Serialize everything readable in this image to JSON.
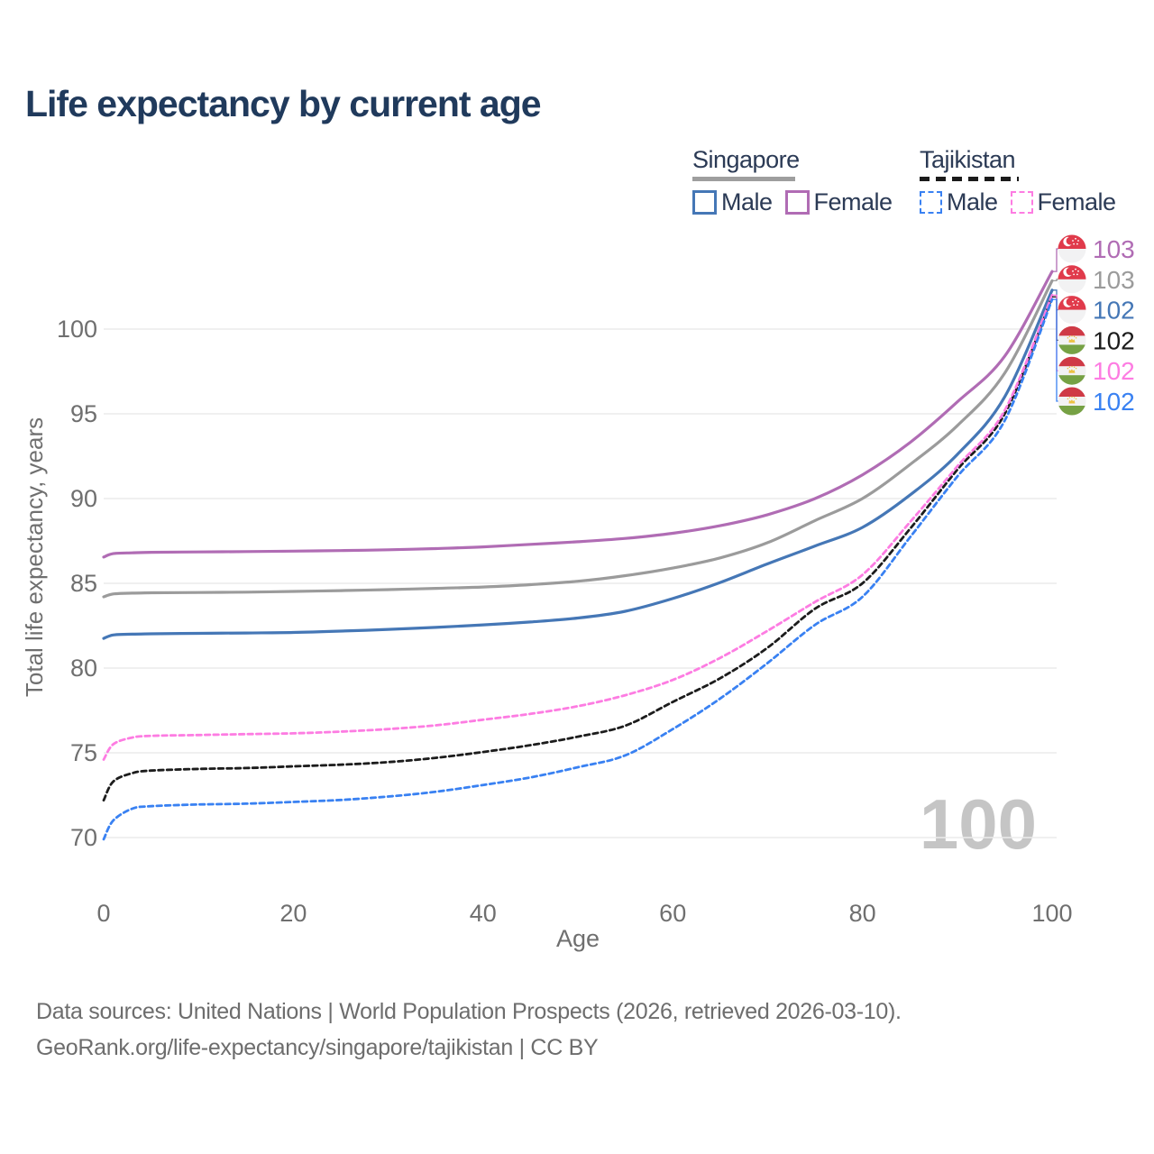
{
  "title": "Life expectancy by current age",
  "watermark": "100",
  "legend": {
    "position": "top-right",
    "groups": [
      {
        "name": "Singapore",
        "line_style": "solid",
        "underline_color": "#9e9e9e",
        "items": [
          {
            "label": "Male",
            "color": "#4577b6",
            "dashed": false
          },
          {
            "label": "Female",
            "color": "#b06cb4",
            "dashed": false
          }
        ]
      },
      {
        "name": "Tajikistan",
        "line_style": "dashed",
        "underline_color": "#1b1b1b",
        "items": [
          {
            "label": "Male",
            "color": "#3981f2",
            "dashed": true
          },
          {
            "label": "Female",
            "color": "#fd7ce2",
            "dashed": true
          }
        ]
      }
    ]
  },
  "footer": {
    "line1": "Data sources: United Nations | World Population Prospects (2026, retrieved 2026-03-10).",
    "line2": "GeoRank.org/life-expectancy/singapore/tajikistan | CC BY"
  },
  "chart_data": {
    "type": "line",
    "title": "Life expectancy by current age",
    "xlabel": "Age",
    "ylabel": "Total life expectancy, years",
    "xlim": [
      0,
      100
    ],
    "ylim": [
      67.5,
      104
    ],
    "x_ticks": [
      0,
      20,
      40,
      60,
      80,
      100
    ],
    "y_ticks": [
      70,
      75,
      80,
      85,
      90,
      95,
      100
    ],
    "grid": true,
    "x": [
      0,
      1,
      3,
      5,
      10,
      15,
      20,
      25,
      30,
      35,
      40,
      45,
      50,
      55,
      60,
      65,
      70,
      75,
      80,
      85,
      90,
      95,
      100
    ],
    "series": [
      {
        "name": "Singapore Female",
        "color": "#b06cb4",
        "dashed": false,
        "flag": "singapore",
        "end_label": "103",
        "values": [
          86.55,
          86.75,
          86.8,
          86.83,
          86.85,
          86.87,
          86.9,
          86.93,
          86.98,
          87.05,
          87.15,
          87.3,
          87.45,
          87.65,
          87.95,
          88.4,
          89.05,
          90.0,
          91.4,
          93.3,
          95.7,
          98.4,
          103.4
        ]
      },
      {
        "name": "Singapore Both sexes",
        "color": "#9b9b9b",
        "dashed": false,
        "flag": "singapore",
        "end_label": "103",
        "values": [
          84.2,
          84.37,
          84.42,
          84.44,
          84.46,
          84.48,
          84.52,
          84.57,
          84.63,
          84.7,
          84.78,
          84.92,
          85.12,
          85.45,
          85.9,
          86.5,
          87.4,
          88.7,
          90.0,
          92.0,
          94.3,
          97.4,
          102.85
        ]
      },
      {
        "name": "Singapore Male",
        "color": "#4577b6",
        "dashed": false,
        "flag": "singapore",
        "end_label": "102",
        "values": [
          81.75,
          81.95,
          82.0,
          82.02,
          82.05,
          82.07,
          82.1,
          82.18,
          82.28,
          82.4,
          82.55,
          82.72,
          82.95,
          83.35,
          84.1,
          85.05,
          86.15,
          87.2,
          88.3,
          90.2,
          92.6,
          96.0,
          102.3
        ]
      },
      {
        "name": "Tajikistan Both sexes",
        "color": "#1c1c1c",
        "dashed": true,
        "flag": "tajikistan",
        "end_label": "102",
        "values": [
          72.2,
          73.3,
          73.8,
          73.95,
          74.05,
          74.1,
          74.2,
          74.3,
          74.45,
          74.7,
          75.05,
          75.45,
          75.95,
          76.6,
          78.0,
          79.4,
          81.2,
          83.5,
          85.0,
          88.2,
          91.7,
          95.0,
          101.9
        ]
      },
      {
        "name": "Tajikistan Female",
        "color": "#fd7ce2",
        "dashed": true,
        "flag": "tajikistan",
        "end_label": "102",
        "values": [
          74.6,
          75.5,
          75.9,
          76.0,
          76.05,
          76.1,
          76.15,
          76.25,
          76.4,
          76.62,
          76.95,
          77.3,
          77.75,
          78.4,
          79.3,
          80.6,
          82.2,
          83.9,
          85.5,
          88.6,
          91.9,
          95.2,
          102.0
        ]
      },
      {
        "name": "Tajikistan Male",
        "color": "#3981f2",
        "dashed": true,
        "flag": "tajikistan",
        "end_label": "102",
        "values": [
          69.9,
          71.0,
          71.7,
          71.85,
          71.95,
          72.0,
          72.1,
          72.22,
          72.42,
          72.7,
          73.1,
          73.55,
          74.15,
          74.85,
          76.4,
          78.2,
          80.3,
          82.55,
          84.2,
          87.7,
          91.3,
          94.6,
          101.75
        ]
      }
    ]
  }
}
